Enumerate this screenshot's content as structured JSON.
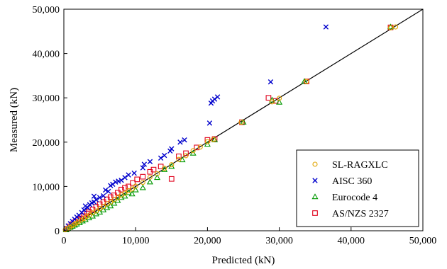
{
  "chart_data": {
    "type": "scatter",
    "xlabel": "Predicted (kN)",
    "ylabel": "Measured (kN)",
    "xlim": [
      0,
      50000
    ],
    "ylim": [
      0,
      50000
    ],
    "x_ticks": [
      "0",
      "10,000",
      "20,000",
      "30,000",
      "40,000",
      "50,000"
    ],
    "y_ticks": [
      "0",
      "10,000",
      "20,000",
      "30,000",
      "40,000",
      "50,000"
    ],
    "grid": false,
    "legend_position": "bottom-right",
    "reference_line": "y = x",
    "series": [
      {
        "name": "SL-RAGXLC",
        "marker": "circle",
        "color": "#E0A400",
        "points": [
          [
            200,
            220
          ],
          [
            500,
            520
          ],
          [
            800,
            790
          ],
          [
            1100,
            1120
          ],
          [
            1400,
            1380
          ],
          [
            1700,
            1720
          ],
          [
            2000,
            1980
          ],
          [
            2400,
            2420
          ],
          [
            2800,
            2760
          ],
          [
            3200,
            3240
          ],
          [
            3600,
            3580
          ],
          [
            4000,
            4050
          ],
          [
            4500,
            4460
          ],
          [
            5000,
            5040
          ],
          [
            5500,
            5450
          ],
          [
            6000,
            6070
          ],
          [
            6500,
            6460
          ],
          [
            7000,
            7050
          ],
          [
            7500,
            7440
          ],
          [
            8000,
            8080
          ],
          [
            8500,
            8450
          ],
          [
            9000,
            9060
          ],
          [
            9500,
            9430
          ],
          [
            10000,
            10080
          ],
          [
            11000,
            10920
          ],
          [
            12000,
            12100
          ],
          [
            13000,
            12900
          ],
          [
            14000,
            14100
          ],
          [
            15000,
            14900
          ],
          [
            16000,
            16100
          ],
          [
            17000,
            16950
          ],
          [
            18000,
            18080
          ],
          [
            19000,
            18900
          ],
          [
            20000,
            20100
          ],
          [
            20800,
            20600
          ],
          [
            24700,
            24500
          ],
          [
            29000,
            29100
          ],
          [
            30000,
            29900
          ],
          [
            33800,
            33700
          ],
          [
            45500,
            45800
          ],
          [
            46200,
            46000
          ]
        ]
      },
      {
        "name": "AISC 360",
        "marker": "cross",
        "color": "#0000CC",
        "points": [
          [
            300,
            500
          ],
          [
            600,
            1100
          ],
          [
            900,
            1600
          ],
          [
            1200,
            2100
          ],
          [
            1500,
            2600
          ],
          [
            1800,
            3100
          ],
          [
            2100,
            3500
          ],
          [
            2500,
            4100
          ],
          [
            2800,
            4700
          ],
          [
            3000,
            5600
          ],
          [
            3300,
            5200
          ],
          [
            3600,
            5900
          ],
          [
            3900,
            6300
          ],
          [
            4200,
            6500
          ],
          [
            4500,
            7000
          ],
          [
            4200,
            7800
          ],
          [
            5000,
            7500
          ],
          [
            5500,
            7900
          ],
          [
            5800,
            9200
          ],
          [
            6200,
            8900
          ],
          [
            6500,
            10200
          ],
          [
            6800,
            10500
          ],
          [
            7200,
            11000
          ],
          [
            7600,
            11200
          ],
          [
            8000,
            11400
          ],
          [
            8500,
            12000
          ],
          [
            9000,
            12600
          ],
          [
            9800,
            13000
          ],
          [
            11000,
            14200
          ],
          [
            11200,
            15000
          ],
          [
            12000,
            15600
          ],
          [
            13500,
            16400
          ],
          [
            14000,
            17000
          ],
          [
            14800,
            18000
          ],
          [
            15000,
            18500
          ],
          [
            16200,
            20000
          ],
          [
            16800,
            20500
          ],
          [
            20300,
            24300
          ],
          [
            20500,
            28800
          ],
          [
            20700,
            29300
          ],
          [
            21000,
            29700
          ],
          [
            21400,
            30200
          ],
          [
            28800,
            33600
          ],
          [
            36500,
            46000
          ]
        ]
      },
      {
        "name": "Eurocode 4",
        "marker": "triangle",
        "color": "#009900",
        "points": [
          [
            300,
            200
          ],
          [
            600,
            450
          ],
          [
            900,
            750
          ],
          [
            1200,
            1000
          ],
          [
            1500,
            1250
          ],
          [
            1800,
            1500
          ],
          [
            2200,
            1800
          ],
          [
            2600,
            2200
          ],
          [
            3000,
            2500
          ],
          [
            3500,
            2900
          ],
          [
            4000,
            3300
          ],
          [
            4500,
            3800
          ],
          [
            5000,
            4200
          ],
          [
            5500,
            4700
          ],
          [
            6000,
            5200
          ],
          [
            6500,
            5600
          ],
          [
            7000,
            6200
          ],
          [
            7500,
            6800
          ],
          [
            8000,
            7500
          ],
          [
            8500,
            7800
          ],
          [
            9000,
            8600
          ],
          [
            9500,
            8300
          ],
          [
            10000,
            9200
          ],
          [
            11000,
            9700
          ],
          [
            12000,
            11000
          ],
          [
            13000,
            12000
          ],
          [
            14000,
            13800
          ],
          [
            15000,
            14500
          ],
          [
            16500,
            16000
          ],
          [
            18000,
            17500
          ],
          [
            20000,
            19500
          ],
          [
            21000,
            20500
          ],
          [
            25000,
            24500
          ],
          [
            29000,
            29500
          ],
          [
            30000,
            29000
          ],
          [
            33500,
            33700
          ],
          [
            45500,
            46000
          ]
        ]
      },
      {
        "name": "AS/NZS 2327",
        "marker": "square",
        "color": "#E0001B",
        "points": [
          [
            400,
            450
          ],
          [
            800,
            1000
          ],
          [
            1200,
            1500
          ],
          [
            1600,
            2000
          ],
          [
            2000,
            2500
          ],
          [
            2400,
            2800
          ],
          [
            2800,
            3300
          ],
          [
            3200,
            3900
          ],
          [
            3500,
            4300
          ],
          [
            4000,
            4800
          ],
          [
            4500,
            5400
          ],
          [
            5000,
            6000
          ],
          [
            5500,
            6500
          ],
          [
            6000,
            7100
          ],
          [
            6500,
            7600
          ],
          [
            7000,
            8000
          ],
          [
            7500,
            8600
          ],
          [
            8000,
            9300
          ],
          [
            8500,
            9700
          ],
          [
            9000,
            10000
          ],
          [
            9600,
            10800
          ],
          [
            10200,
            11600
          ],
          [
            11000,
            12200
          ],
          [
            12000,
            13300
          ],
          [
            12500,
            13800
          ],
          [
            13500,
            14500
          ],
          [
            15000,
            11700
          ],
          [
            16000,
            16800
          ],
          [
            17000,
            17500
          ],
          [
            18500,
            18800
          ],
          [
            20000,
            20500
          ],
          [
            21000,
            20700
          ],
          [
            24800,
            24500
          ],
          [
            28500,
            30000
          ],
          [
            29500,
            29300
          ],
          [
            33800,
            33700
          ],
          [
            45500,
            45900
          ]
        ]
      }
    ]
  }
}
